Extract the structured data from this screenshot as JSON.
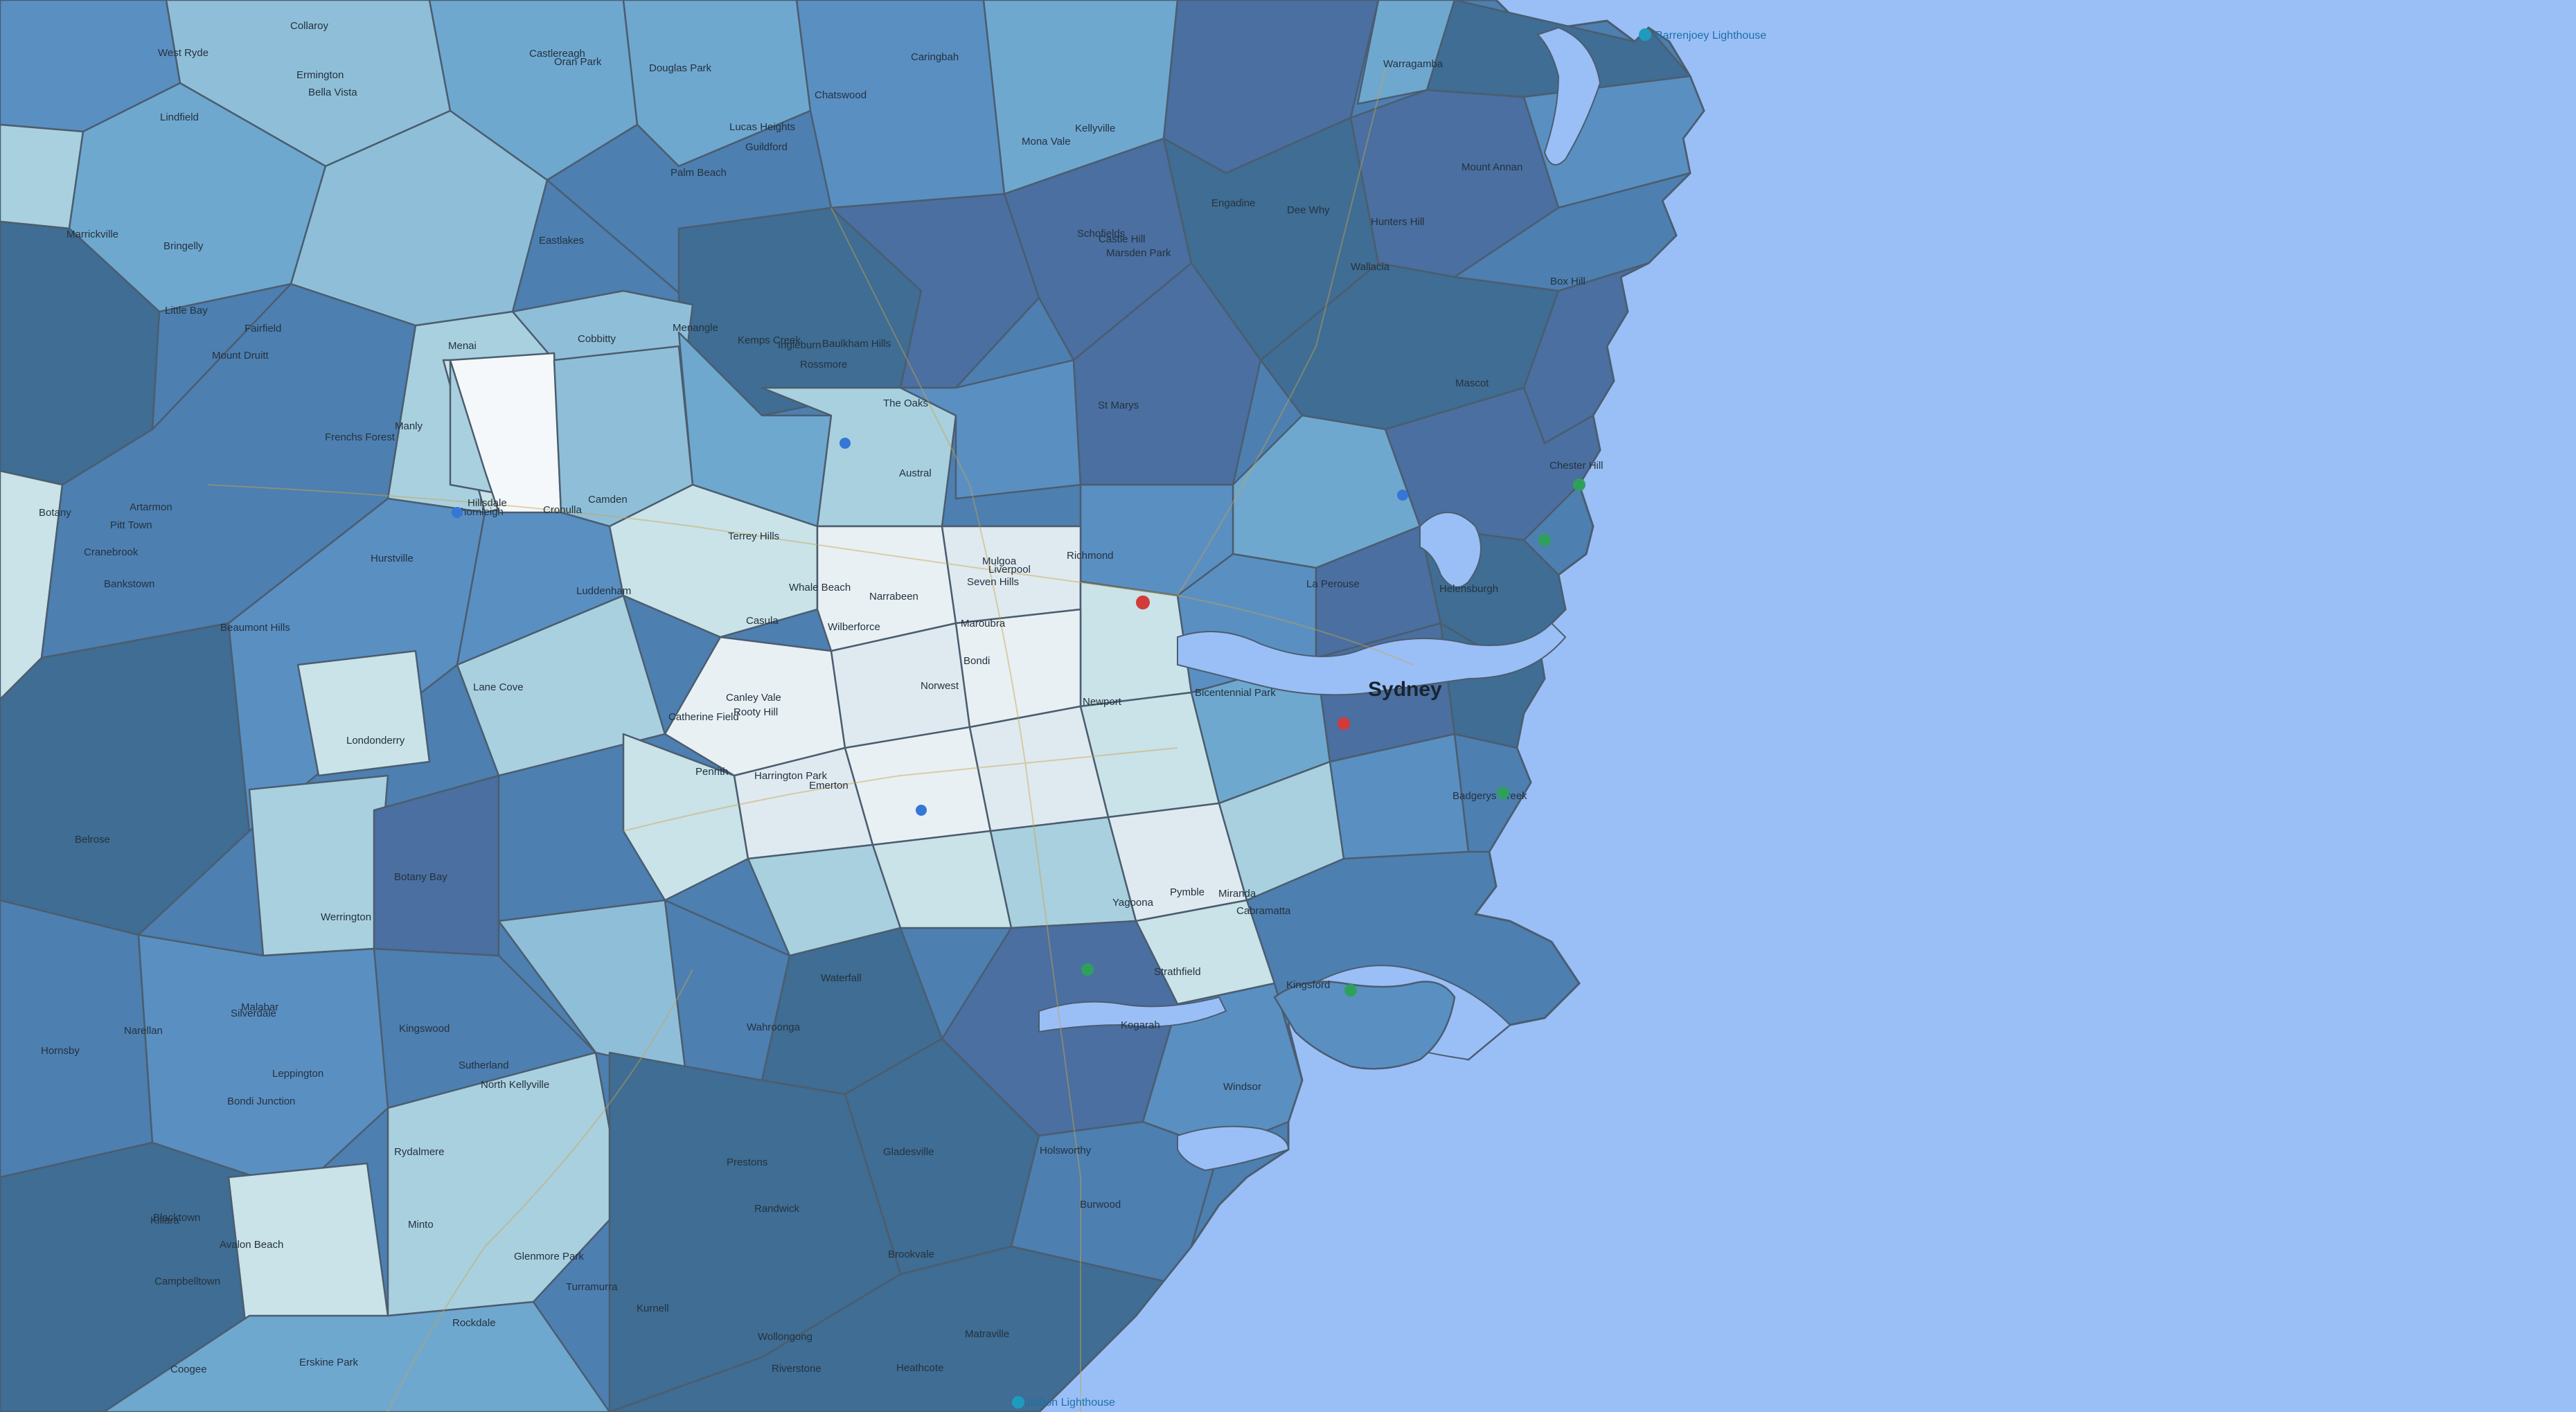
{
  "map": {
    "ocean_color": "#9abff7",
    "land_colors": [
      "#c9e3e8",
      "#a9d0df",
      "#8fbfd8",
      "#6fa8cf",
      "#5a8fc2",
      "#4d7fb0",
      "#4a6fa0",
      "#3f6d93"
    ],
    "boundary_color": "#4b5d6f",
    "city_label": "Sydney",
    "lighthouse_labels": {
      "north": "Barrenjoey Lighthouse",
      "south": "Jibbon Lighthouse"
    },
    "place_labels": [
      "Emerton",
      "Mount Druitt",
      "Rooty Hill",
      "Blacktown",
      "Seven Hills",
      "North Kellyville",
      "Kellyville",
      "Baulkham Hills",
      "Castle Hill",
      "Norwest",
      "Bella Vista",
      "Beaumont Hills",
      "Box Hill",
      "Penrith",
      "St Marys",
      "Erskine Park",
      "Kemps Creek",
      "Austral",
      "Leppington",
      "Camden",
      "Campbelltown",
      "Minto",
      "Ingleburn",
      "Liverpool",
      "Cabramatta",
      "Fairfield",
      "Guildford",
      "Bankstown",
      "Yagoona",
      "Chester Hill",
      "Canley Vale",
      "Prestons",
      "Casula",
      "Menai",
      "Engadine",
      "Sutherland",
      "Miranda",
      "Caringbah",
      "Cronulla",
      "Hurstville",
      "Kogarah",
      "Rockdale",
      "Botany",
      "Maroubra",
      "Coogee",
      "Randwick",
      "Bondi",
      "Bondi Junction",
      "Mascot",
      "Marrickville",
      "Strathfield",
      "Burwood",
      "Rydalmere",
      "Ermington",
      "West Ryde",
      "Gladesville",
      "Hunters Hill",
      "Chatswood",
      "Lane Cove",
      "Artarmon",
      "Manly",
      "Dee Why",
      "Collaroy",
      "Mona Vale",
      "Palm Beach",
      "Whale Beach",
      "Hornsby",
      "Wahroonga",
      "Turramurra",
      "Pymble",
      "Thornleigh",
      "Killara",
      "Lindfield",
      "Frenchs Forest",
      "Belrose",
      "Terrey Hills",
      "Brookvale",
      "Narrabeen",
      "Avalon Beach",
      "Newport",
      "Wollongong",
      "Helensburgh",
      "Waterfall",
      "Heathcote",
      "Holsworthy",
      "Lucas Heights",
      "Richmond",
      "Windsor",
      "Wilberforce",
      "Pitt Town",
      "Riverstone",
      "Schofields",
      "Marsden Park",
      "Londonderry",
      "Castlereagh",
      "Cranebrook",
      "Werrington",
      "Kingswood",
      "Glenmore Park",
      "Mulgoa",
      "Wallacia",
      "Luddenham",
      "Badgerys Creek",
      "Bringelly",
      "Rossmore",
      "Catherine Field",
      "Oran Park",
      "Narellan",
      "Harrington Park",
      "Mount Annan",
      "Menangle",
      "Douglas Park",
      "Silverdale",
      "Warragamba",
      "The Oaks",
      "Cobbitty",
      "Bicentennial Park",
      "Botany Bay",
      "Kurnell",
      "La Perouse",
      "Little Bay",
      "Malabar",
      "Matraville",
      "Hillsdale",
      "Eastlakes",
      "Kingsford"
    ]
  }
}
